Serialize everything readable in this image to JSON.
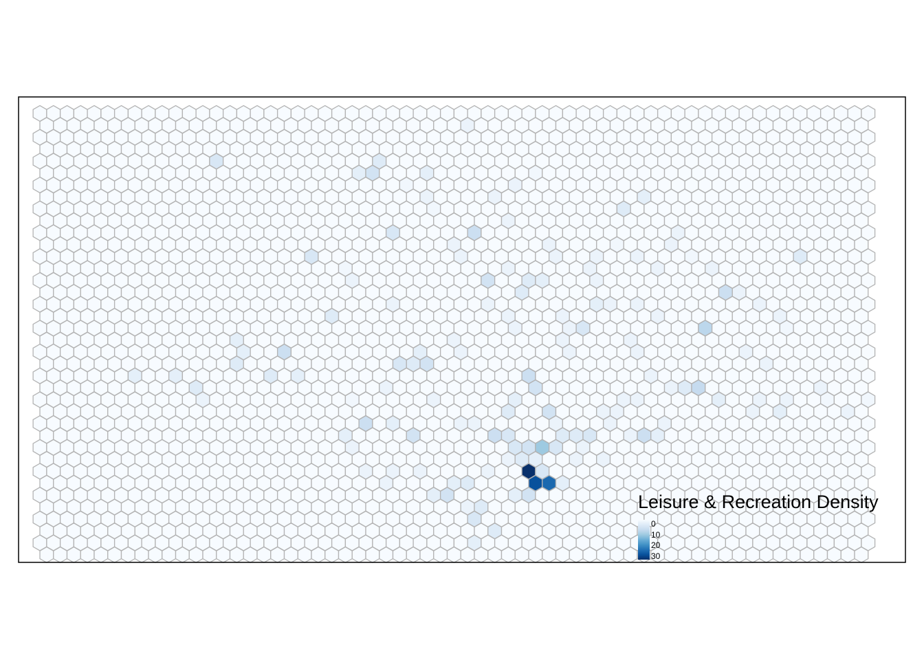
{
  "legend": {
    "title": "Leisure & Recreation Density",
    "ticks": [
      "0",
      "10",
      "20",
      "30"
    ],
    "min": 0,
    "max": 32,
    "colors": [
      "#f7fbff",
      "#deebf7",
      "#c6dbef",
      "#9ecae1",
      "#6baed6",
      "#4292c6",
      "#2171b5",
      "#08519c",
      "#08306b"
    ]
  },
  "grid": {
    "columns": 62,
    "rows": 38,
    "outline_color": "#b3b3b3",
    "frame_color": "#000000"
  },
  "cells": [
    [
      31,
      1,
      2
    ],
    [
      25,
      4,
      4
    ],
    [
      13,
      4,
      5
    ],
    [
      24,
      5,
      6
    ],
    [
      23,
      5,
      3
    ],
    [
      28,
      5,
      3
    ],
    [
      33,
      7,
      2
    ],
    [
      43,
      8,
      4
    ],
    [
      44,
      7,
      3
    ],
    [
      34,
      9,
      2
    ],
    [
      32,
      10,
      7
    ],
    [
      26,
      10,
      5
    ],
    [
      42,
      11,
      1
    ],
    [
      41,
      12,
      2
    ],
    [
      20,
      12,
      5
    ],
    [
      56,
      12,
      4
    ],
    [
      34,
      13,
      2
    ],
    [
      33,
      14,
      6
    ],
    [
      36,
      14,
      4
    ],
    [
      37,
      14,
      3
    ],
    [
      35,
      15,
      4
    ],
    [
      50,
      15,
      7
    ],
    [
      51,
      15,
      2
    ],
    [
      26,
      16,
      2
    ],
    [
      41,
      16,
      3
    ],
    [
      42,
      16,
      2
    ],
    [
      21,
      17,
      4
    ],
    [
      49,
      18,
      9
    ],
    [
      40,
      18,
      5
    ],
    [
      35,
      18,
      2
    ],
    [
      38,
      19,
      2
    ],
    [
      14,
      19,
      3
    ],
    [
      18,
      20,
      7
    ],
    [
      15,
      20,
      3
    ],
    [
      28,
      20,
      3
    ],
    [
      26,
      21,
      5
    ],
    [
      27,
      21,
      4
    ],
    [
      28,
      21,
      6
    ],
    [
      14,
      21,
      4
    ],
    [
      17,
      22,
      4
    ],
    [
      19,
      22,
      3
    ],
    [
      36,
      22,
      7
    ],
    [
      7,
      22,
      3
    ],
    [
      10,
      22,
      3
    ],
    [
      11,
      23,
      4
    ],
    [
      36,
      23,
      6
    ],
    [
      47,
      23,
      4
    ],
    [
      48,
      23,
      8
    ],
    [
      50,
      24,
      3
    ],
    [
      35,
      24,
      3
    ],
    [
      34,
      25,
      4
    ],
    [
      37,
      25,
      6
    ],
    [
      24,
      26,
      7
    ],
    [
      26,
      26,
      3
    ],
    [
      38,
      26,
      2
    ],
    [
      27,
      27,
      6
    ],
    [
      33,
      27,
      7
    ],
    [
      34,
      27,
      5
    ],
    [
      38,
      27,
      4
    ],
    [
      39,
      27,
      4
    ],
    [
      40,
      27,
      5
    ],
    [
      44,
      27,
      7
    ],
    [
      45,
      27,
      3
    ],
    [
      35,
      28,
      5
    ],
    [
      36,
      28,
      6
    ],
    [
      37,
      28,
      12
    ],
    [
      38,
      28,
      5
    ],
    [
      35,
      29,
      4
    ],
    [
      36,
      29,
      3
    ],
    [
      39,
      29,
      2
    ],
    [
      36,
      30,
      32
    ],
    [
      37,
      30,
      5
    ],
    [
      30,
      31,
      3
    ],
    [
      31,
      31,
      4
    ],
    [
      36,
      31,
      28
    ],
    [
      37,
      31,
      25
    ],
    [
      38,
      31,
      3
    ],
    [
      29,
      32,
      3
    ],
    [
      30,
      32,
      6
    ],
    [
      35,
      32,
      3
    ],
    [
      36,
      32,
      6
    ],
    [
      31,
      33,
      2
    ],
    [
      32,
      33,
      4
    ],
    [
      32,
      34,
      5
    ],
    [
      33,
      35,
      4
    ],
    [
      32,
      36,
      3
    ],
    [
      22,
      27,
      3
    ],
    [
      23,
      28,
      2
    ],
    [
      31,
      26,
      2
    ],
    [
      32,
      26,
      2
    ],
    [
      29,
      24,
      2
    ],
    [
      41,
      25,
      2
    ],
    [
      42,
      25,
      2
    ],
    [
      43,
      24,
      2
    ],
    [
      52,
      25,
      2
    ],
    [
      53,
      24,
      2
    ],
    [
      54,
      25,
      3
    ],
    [
      55,
      24,
      2
    ],
    [
      46,
      26,
      2
    ],
    [
      30,
      19,
      2
    ],
    [
      31,
      20,
      2
    ],
    [
      39,
      20,
      2
    ],
    [
      43,
      19,
      2
    ],
    [
      44,
      20,
      2
    ],
    [
      52,
      20,
      2
    ],
    [
      53,
      21,
      2
    ],
    [
      38,
      17,
      2
    ],
    [
      39,
      18,
      2
    ],
    [
      44,
      16,
      2
    ],
    [
      45,
      17,
      2
    ],
    [
      46,
      11,
      2
    ],
    [
      47,
      10,
      2
    ],
    [
      30,
      11,
      2
    ],
    [
      31,
      12,
      2
    ],
    [
      22,
      13,
      1
    ],
    [
      23,
      14,
      2
    ],
    [
      33,
      16,
      2
    ],
    [
      34,
      17,
      2
    ],
    [
      37,
      11,
      2
    ],
    [
      38,
      12,
      2
    ],
    [
      40,
      13,
      2
    ],
    [
      41,
      14,
      2
    ],
    [
      44,
      12,
      2
    ],
    [
      45,
      13,
      2
    ],
    [
      48,
      12,
      1
    ],
    [
      49,
      13,
      2
    ],
    [
      27,
      6,
      1
    ],
    [
      28,
      7,
      2
    ],
    [
      29,
      8,
      1
    ],
    [
      35,
      6,
      2
    ],
    [
      36,
      5,
      1
    ],
    [
      53,
      16,
      2
    ],
    [
      54,
      17,
      2
    ],
    [
      55,
      18,
      1
    ],
    [
      45,
      22,
      2
    ],
    [
      46,
      23,
      2
    ],
    [
      44,
      24,
      2
    ],
    [
      24,
      30,
      2
    ],
    [
      25,
      31,
      2
    ],
    [
      26,
      30,
      2
    ],
    [
      28,
      30,
      2
    ],
    [
      33,
      30,
      2
    ],
    [
      34,
      29,
      2
    ],
    [
      40,
      28,
      2
    ],
    [
      41,
      29,
      2
    ],
    [
      42,
      26,
      2
    ],
    [
      43,
      27,
      2
    ],
    [
      23,
      24,
      1
    ],
    [
      25,
      23,
      2
    ],
    [
      12,
      24,
      2
    ],
    [
      59,
      25,
      2
    ],
    [
      61,
      24,
      1
    ],
    [
      57,
      23,
      2
    ],
    [
      58,
      24,
      1
    ]
  ]
}
